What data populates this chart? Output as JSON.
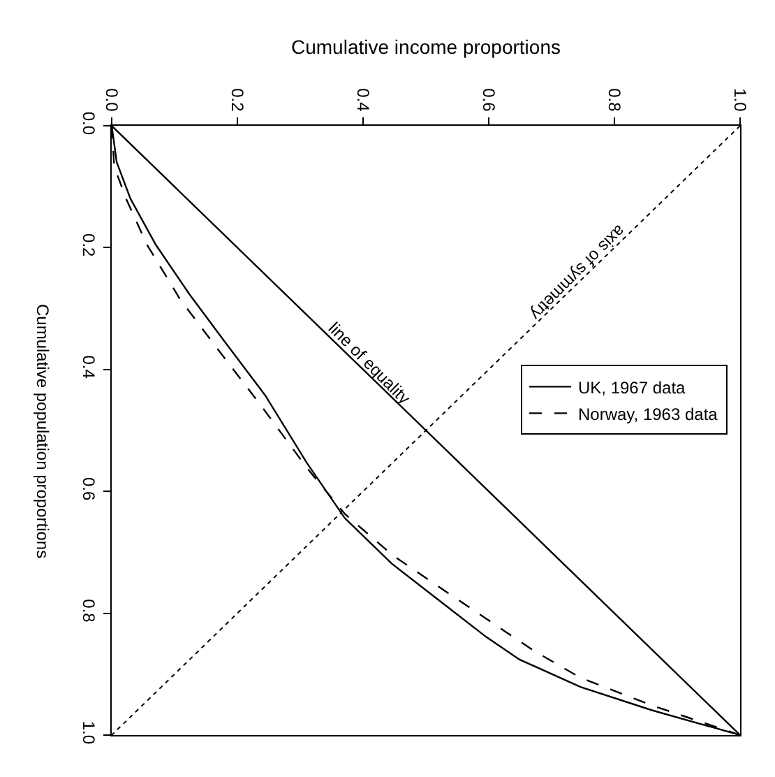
{
  "chart_data": {
    "type": "line",
    "xlabel": "Cumulative income proportions",
    "ylabel": "Cumulative population proportions",
    "xlim": [
      0,
      1
    ],
    "ylim": [
      1,
      0
    ],
    "xticks": [
      {
        "value": 0,
        "label": "0.0"
      },
      0.2,
      0.4,
      0.6,
      0.8,
      {
        "value": 1,
        "label": "1.0"
      }
    ],
    "yticks": [
      {
        "value": 0,
        "label": "0.0"
      },
      0.2,
      0.4,
      0.6,
      0.8,
      {
        "value": 1,
        "label": "1.0"
      }
    ],
    "legend": "right",
    "marker": "none",
    "series": [
      {
        "name": "UK, 1967 data",
        "color": "#000000",
        "line_style": "solid",
        "x": [
          0,
          0.008,
          0.03,
          0.07,
          0.124,
          0.184,
          0.244,
          0.311,
          0.371,
          0.446,
          0.521,
          0.596,
          0.649,
          0.746,
          0.859,
          1
        ],
        "values": [
          0,
          0.06,
          0.12,
          0.195,
          0.277,
          0.36,
          0.442,
          0.554,
          0.644,
          0.719,
          0.779,
          0.839,
          0.876,
          0.921,
          0.959,
          1
        ]
      },
      {
        "name": "Norway, 1963 data",
        "color": "#000000",
        "line_style": "dashed",
        "x": [
          0,
          0.004,
          0.023,
          0.056,
          0.109,
          0.169,
          0.236,
          0.311,
          0.371,
          0.446,
          0.521,
          0.596,
          0.671,
          0.746,
          0.859,
          1
        ],
        "values": [
          0,
          0.067,
          0.12,
          0.195,
          0.285,
          0.367,
          0.457,
          0.562,
          0.637,
          0.704,
          0.757,
          0.809,
          0.861,
          0.906,
          0.951,
          1
        ]
      },
      {
        "color": "#000000",
        "line_style": "solid",
        "x": [
          0,
          1
        ],
        "values": [
          0,
          1
        ]
      },
      {
        "color": "#000000",
        "line_style": "dotted",
        "x": [
          1,
          0
        ],
        "values": [
          0,
          1
        ]
      }
    ],
    "annotations": [
      "line of equality",
      "axis of symmetry"
    ]
  }
}
